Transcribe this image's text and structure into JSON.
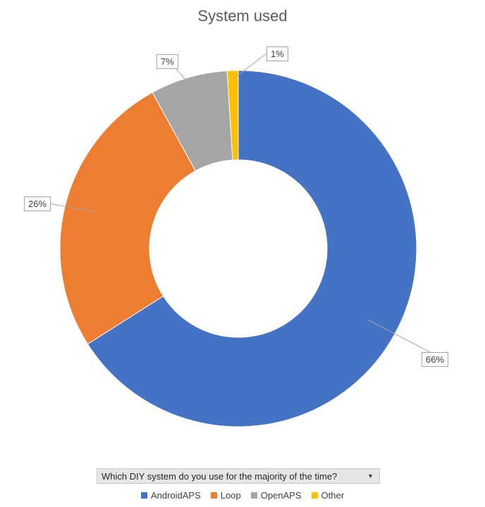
{
  "chart_data": {
    "type": "pie",
    "title": "System used",
    "categories": [
      "AndroidAPS",
      "Loop",
      "OpenAPS",
      "Other"
    ],
    "values": [
      66,
      26,
      7,
      1
    ],
    "data_labels": [
      "66%",
      "26%",
      "7%",
      "1%"
    ],
    "colors": [
      "#4472c4",
      "#ed7d31",
      "#a5a5a5",
      "#ffc000"
    ],
    "legend_position": "bottom",
    "donut": true
  },
  "filter": {
    "label": "Which DIY system do you use for the majority of the time?",
    "icon": "dropdown-arrow-icon"
  }
}
